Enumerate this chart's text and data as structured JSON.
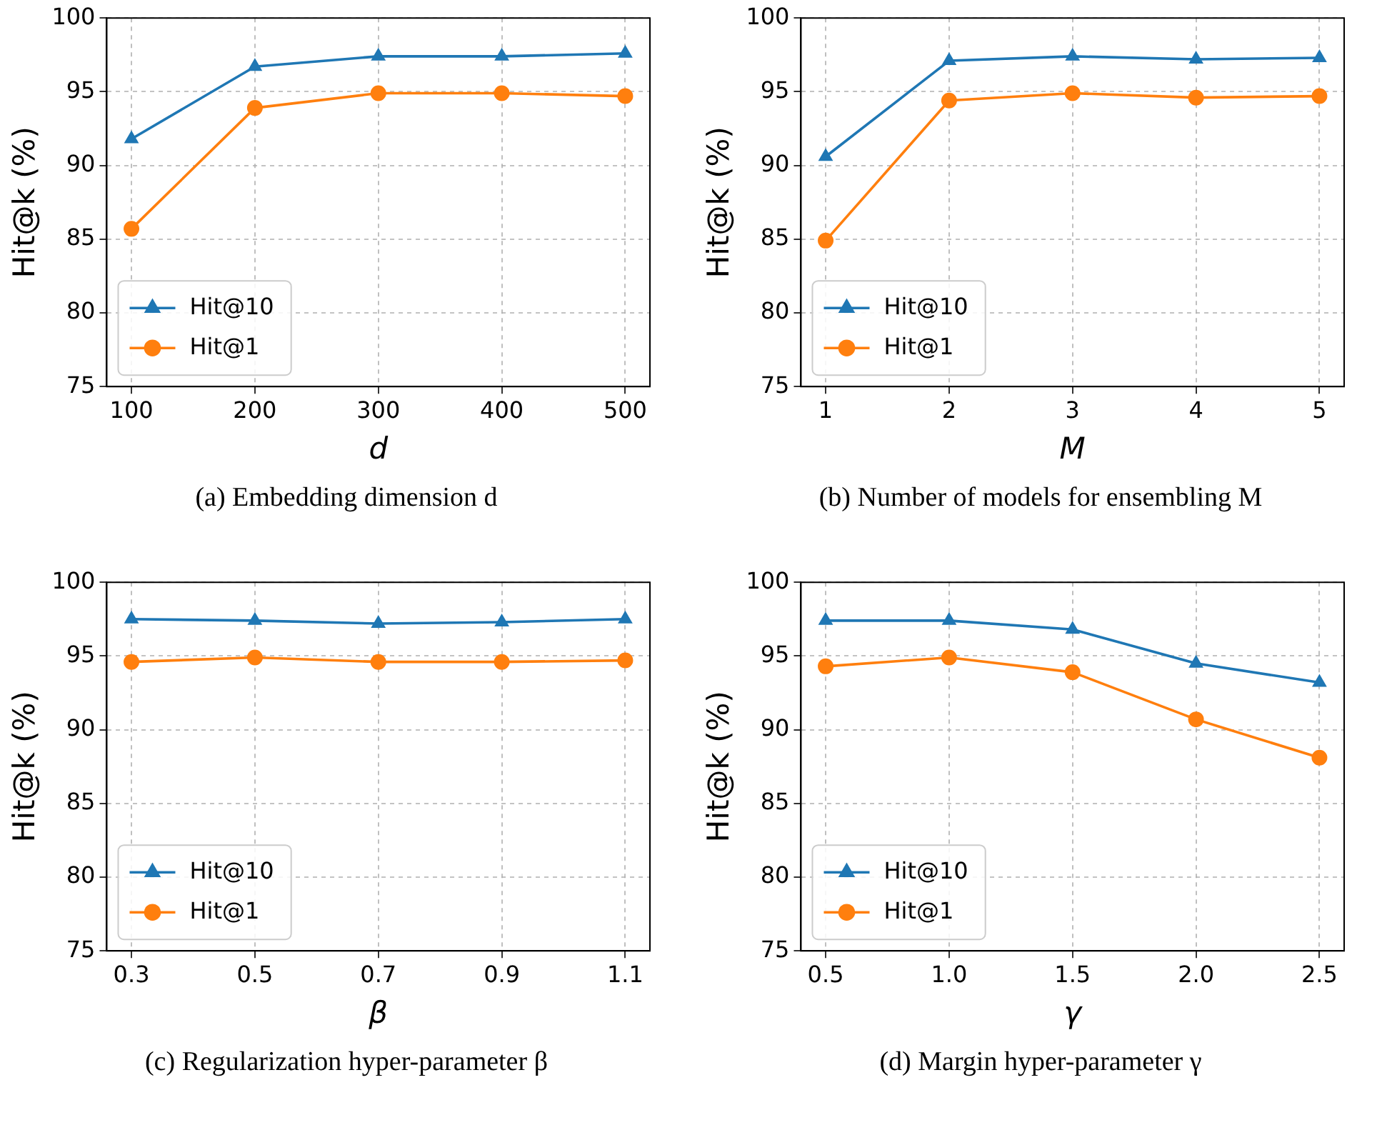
{
  "chart_data": [
    {
      "type": "line",
      "title": "(a) Embedding dimension d",
      "xlabel": "d",
      "ylabel": "Hit@k (%)",
      "x": [
        100,
        200,
        300,
        400,
        500
      ],
      "xlim": [
        80,
        520
      ],
      "xticks": [
        100,
        200,
        300,
        400,
        500
      ],
      "ylim": [
        75,
        100
      ],
      "yticks": [
        75,
        80,
        85,
        90,
        95,
        100
      ],
      "grid": true,
      "legend": "bottom left",
      "line_style": "solid",
      "series": [
        {
          "name": "Hit@10",
          "color": "#1f77b4",
          "marker": "triangle",
          "values": [
            91.8,
            96.7,
            97.4,
            97.4,
            97.6
          ]
        },
        {
          "name": "Hit@1",
          "color": "#ff7f0e",
          "marker": "circle",
          "values": [
            85.7,
            93.9,
            94.9,
            94.9,
            94.7
          ]
        }
      ]
    },
    {
      "type": "line",
      "title": "(b) Number of models for ensembling M",
      "xlabel": "M",
      "ylabel": "Hit@k (%)",
      "x": [
        1,
        2,
        3,
        4,
        5
      ],
      "xlim": [
        0.8,
        5.2
      ],
      "xticks": [
        1,
        2,
        3,
        4,
        5
      ],
      "ylim": [
        75,
        100
      ],
      "yticks": [
        75,
        80,
        85,
        90,
        95,
        100
      ],
      "grid": true,
      "legend": "bottom left",
      "line_style": "solid",
      "series": [
        {
          "name": "Hit@10",
          "color": "#1f77b4",
          "marker": "triangle",
          "values": [
            90.6,
            97.1,
            97.4,
            97.2,
            97.3
          ]
        },
        {
          "name": "Hit@1",
          "color": "#ff7f0e",
          "marker": "circle",
          "values": [
            84.9,
            94.4,
            94.9,
            94.6,
            94.7
          ]
        }
      ]
    },
    {
      "type": "line",
      "title": "(c) Regularization hyper-parameter β",
      "xlabel": "β",
      "ylabel": "Hit@k (%)",
      "x": [
        0.3,
        0.5,
        0.7,
        0.9,
        1.1
      ],
      "xlim": [
        0.26,
        1.14
      ],
      "xticks": [
        0.3,
        0.5,
        0.7,
        0.9,
        1.1
      ],
      "ylim": [
        75,
        100
      ],
      "yticks": [
        75,
        80,
        85,
        90,
        95,
        100
      ],
      "grid": true,
      "legend": "bottom left",
      "line_style": "solid",
      "series": [
        {
          "name": "Hit@10",
          "color": "#1f77b4",
          "marker": "triangle",
          "values": [
            97.5,
            97.4,
            97.2,
            97.3,
            97.5
          ]
        },
        {
          "name": "Hit@1",
          "color": "#ff7f0e",
          "marker": "circle",
          "values": [
            94.6,
            94.9,
            94.6,
            94.6,
            94.7
          ]
        }
      ]
    },
    {
      "type": "line",
      "title": "(d) Margin hyper-parameter γ",
      "xlabel": "γ",
      "ylabel": "Hit@k (%)",
      "x": [
        0.5,
        1,
        1.5,
        2,
        2.5
      ],
      "xlim": [
        0.4,
        2.6
      ],
      "xticks": [
        0.5,
        {
          "value": 1,
          "label": "1.0"
        },
        1.5,
        {
          "value": 2,
          "label": "2.0"
        },
        2.5
      ],
      "ylim": [
        75,
        100
      ],
      "yticks": [
        75,
        80,
        85,
        90,
        95,
        100
      ],
      "grid": true,
      "legend": "bottom left",
      "line_style": "solid",
      "series": [
        {
          "name": "Hit@10",
          "color": "#1f77b4",
          "marker": "triangle",
          "values": [
            97.4,
            97.4,
            96.8,
            94.5,
            93.2
          ]
        },
        {
          "name": "Hit@1",
          "color": "#ff7f0e",
          "marker": "circle",
          "values": [
            94.3,
            94.9,
            93.9,
            90.7,
            88.1
          ]
        }
      ]
    }
  ]
}
